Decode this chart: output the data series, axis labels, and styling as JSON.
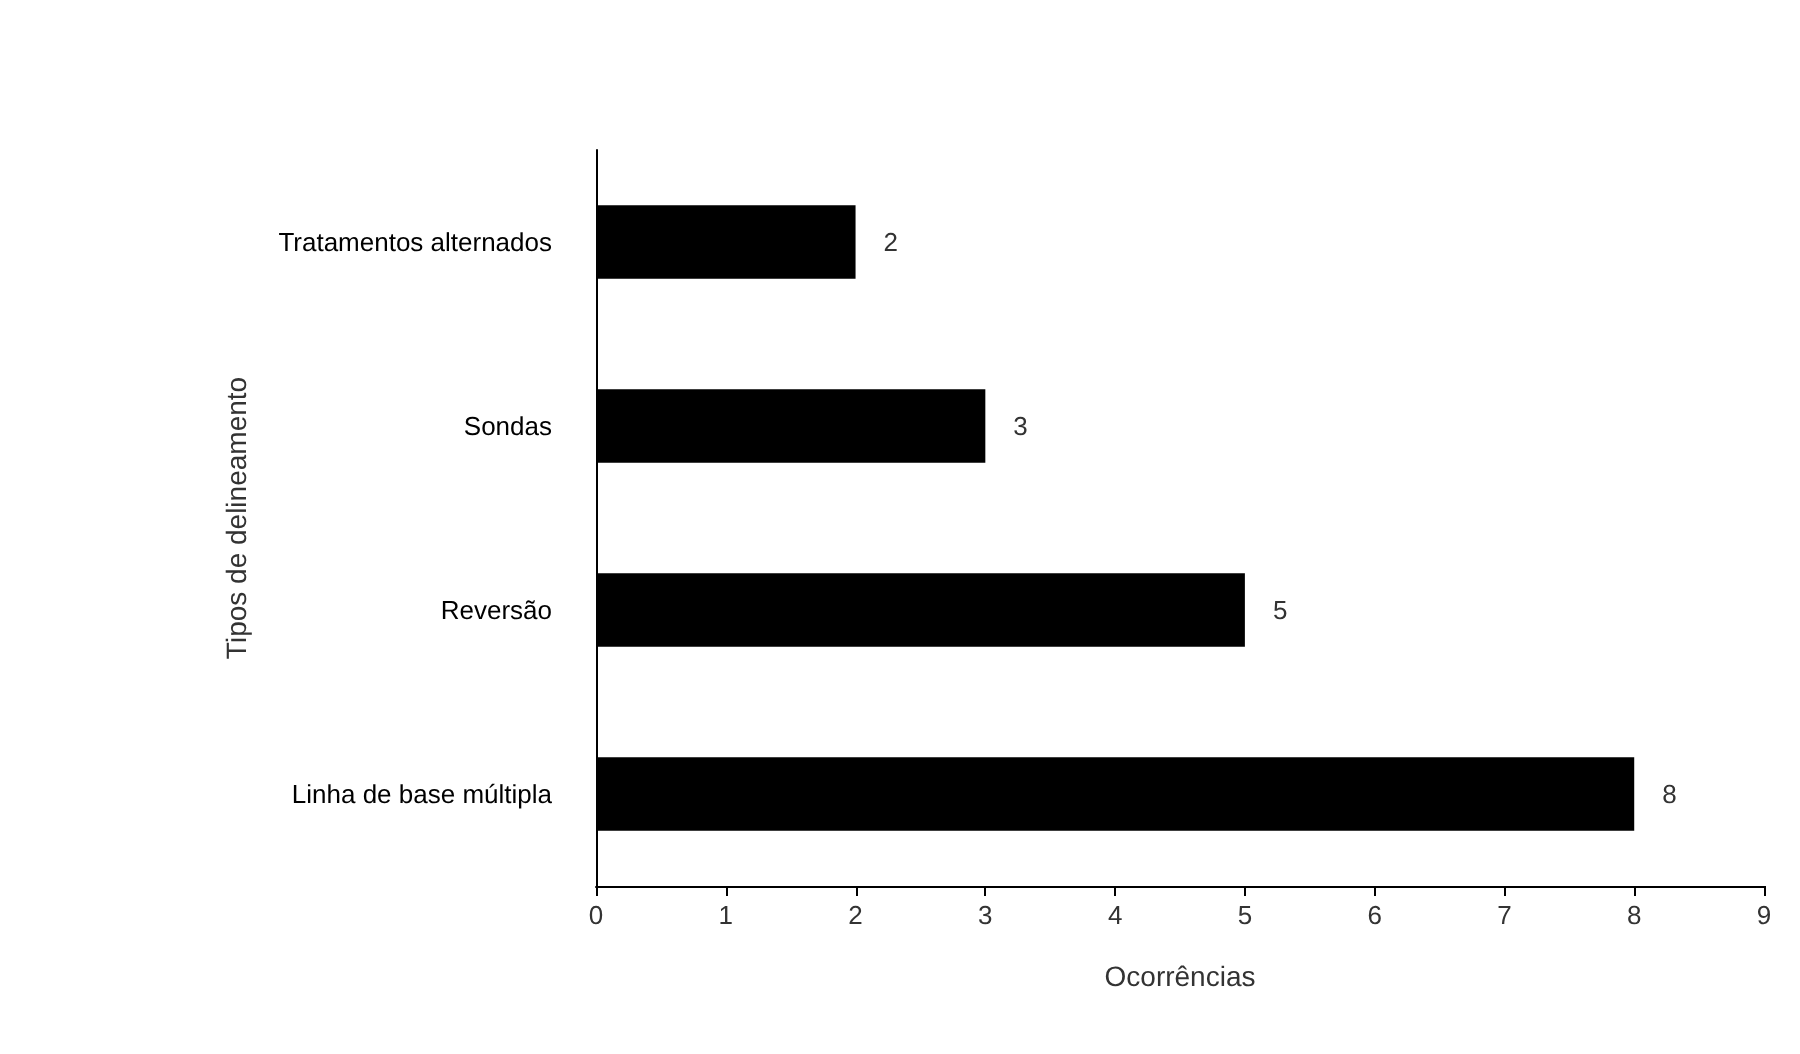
{
  "chart_data": {
    "type": "bar",
    "orientation": "horizontal",
    "xlabel": "Ocorrências",
    "ylabel": "Tipos de delineamento",
    "categories": [
      "Tratamentos alternados",
      "Sondas",
      "Reversão",
      "Linha de base múltipla"
    ],
    "values": [
      2,
      3,
      5,
      8
    ],
    "color": "#000000",
    "xlim": [
      0,
      9
    ],
    "xticks": [
      0,
      1,
      2,
      3,
      4,
      5,
      6,
      7,
      8,
      9
    ],
    "grid": false,
    "data_labels": true
  }
}
